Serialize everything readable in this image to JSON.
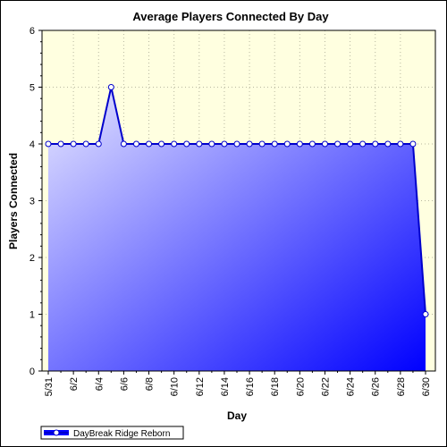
{
  "chart_data": {
    "type": "area",
    "title": "Average Players Connected By Day",
    "xlabel": "Day",
    "ylabel": "Players Connected",
    "ylim": [
      0,
      6
    ],
    "yticks": [
      "0",
      "1",
      "2",
      "3",
      "4",
      "5",
      "6"
    ],
    "x": [
      "5/31",
      "6/1",
      "6/2",
      "6/3",
      "6/4",
      "6/5",
      "6/6",
      "6/7",
      "6/8",
      "6/9",
      "6/10",
      "6/11",
      "6/12",
      "6/13",
      "6/14",
      "6/15",
      "6/16",
      "6/17",
      "6/18",
      "6/19",
      "6/20",
      "6/21",
      "6/22",
      "6/23",
      "6/24",
      "6/25",
      "6/26",
      "6/27",
      "6/28",
      "6/29",
      "6/30"
    ],
    "xticks": [
      "5/31",
      "6/2",
      "6/4",
      "6/6",
      "6/8",
      "6/10",
      "6/12",
      "6/14",
      "6/16",
      "6/18",
      "6/20",
      "6/22",
      "6/24",
      "6/26",
      "6/28",
      "6/30"
    ],
    "series": [
      {
        "name": "DayBreak Ridge Reborn",
        "values": [
          4,
          4,
          4,
          4,
          4,
          5,
          4,
          4,
          4,
          4,
          4,
          4,
          4,
          4,
          4,
          4,
          4,
          4,
          4,
          4,
          4,
          4,
          4,
          4,
          4,
          4,
          4,
          4,
          4,
          4,
          1
        ]
      }
    ],
    "grid": true,
    "legend": "bottom-left",
    "colors": {
      "plot_background": "#ffffe0",
      "line": "#0000cc",
      "area_light": "#e8e8ff",
      "area_dark": "#0000ff",
      "marker_fill": "#ffffff"
    }
  }
}
